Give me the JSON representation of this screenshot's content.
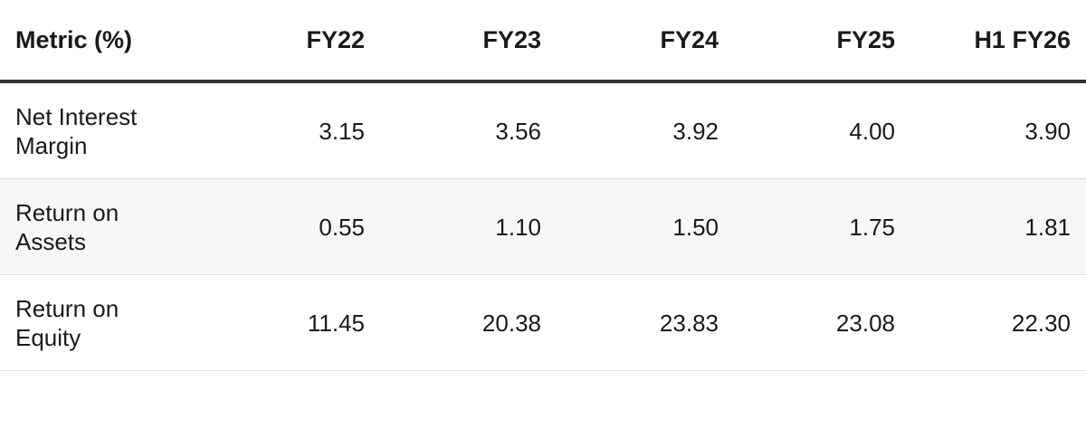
{
  "table": {
    "header": [
      "Metric (%)",
      "FY22",
      "FY23",
      "FY24",
      "FY25",
      "H1 FY26"
    ],
    "rows": [
      [
        "Net Interest Margin",
        "3.15",
        "3.56",
        "3.92",
        "4.00",
        "3.90"
      ],
      [
        "Return on Assets",
        "0.55",
        "1.10",
        "1.50",
        "1.75",
        "1.81"
      ],
      [
        "Return on Equity",
        "11.45",
        "20.38",
        "23.83",
        "23.08",
        "22.30"
      ]
    ]
  }
}
